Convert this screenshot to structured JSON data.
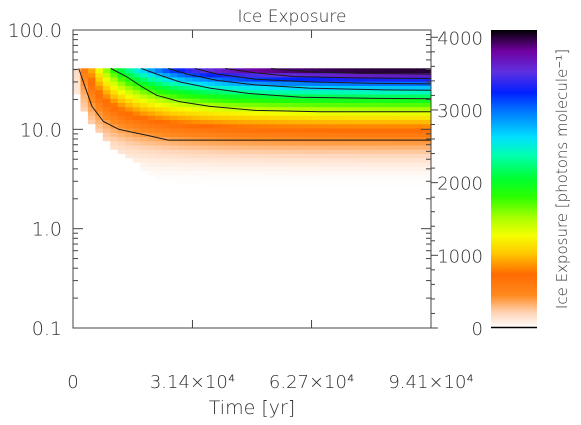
{
  "chart_data": {
    "type": "heatmap",
    "title": "Ice Exposure",
    "xlabel": "Time [yr]",
    "ylabel": "",
    "x_range": [
      0,
      94100
    ],
    "y_range": [
      0.1,
      100.0
    ],
    "y_scale": "log",
    "x_ticks": [
      {
        "value": 0,
        "label": "0"
      },
      {
        "value": 31400,
        "label": "3.14×10⁴"
      },
      {
        "value": 62700,
        "label": "6.27×10⁴"
      },
      {
        "value": 94100,
        "label": "9.41×10⁴"
      }
    ],
    "y_ticks": [
      {
        "value": 0.1,
        "label": "0.1"
      },
      {
        "value": 1.0,
        "label": "1.0"
      },
      {
        "value": 10.0,
        "label": "10.0"
      },
      {
        "value": 100.0,
        "label": "100.0"
      }
    ],
    "colorbar": {
      "label": "Ice Exposure [photons molecule⁻¹]",
      "range": [
        0,
        4100
      ],
      "ticks": [
        {
          "value": 0,
          "label": "0"
        },
        {
          "value": 1000,
          "label": "1000"
        },
        {
          "value": 2000,
          "label": "2000"
        },
        {
          "value": 3000,
          "label": "3000"
        },
        {
          "value": 4000,
          "label": "4000"
        }
      ]
    },
    "region": {
      "y_top": 40,
      "y_edge_min": 2.3
    },
    "contours": [
      {
        "level": 500,
        "points": [
          [
            1500,
            41
          ],
          [
            3000,
            28
          ],
          [
            5000,
            17
          ],
          [
            8000,
            12
          ],
          [
            12000,
            10
          ],
          [
            20000,
            8.6
          ],
          [
            25000,
            7.8
          ],
          [
            94100,
            7.8
          ]
        ]
      },
      {
        "level": 1000,
        "points": [
          [
            10000,
            41
          ],
          [
            14000,
            34
          ],
          [
            18000,
            27
          ],
          [
            22000,
            22
          ],
          [
            28000,
            19
          ],
          [
            36000,
            17
          ],
          [
            48000,
            15.5
          ],
          [
            65000,
            15
          ],
          [
            94100,
            15
          ]
        ]
      },
      {
        "level": 1500,
        "points": [
          [
            18000,
            41
          ],
          [
            22000,
            36
          ],
          [
            28000,
            30
          ],
          [
            36000,
            26
          ],
          [
            46000,
            23
          ],
          [
            60000,
            21
          ],
          [
            80000,
            20.5
          ],
          [
            94100,
            20.3
          ]
        ]
      },
      {
        "level": 2000,
        "points": [
          [
            25000,
            41
          ],
          [
            30000,
            36
          ],
          [
            38000,
            31
          ],
          [
            48000,
            28
          ],
          [
            62000,
            26
          ],
          [
            80000,
            25
          ],
          [
            94100,
            24.7
          ]
        ]
      },
      {
        "level": 2500,
        "points": [
          [
            32000,
            41
          ],
          [
            38000,
            36
          ],
          [
            48000,
            32
          ],
          [
            62000,
            30
          ],
          [
            80000,
            29
          ],
          [
            94100,
            28.7
          ]
        ]
      },
      {
        "level": 3000,
        "points": [
          [
            40000,
            41
          ],
          [
            48000,
            37
          ],
          [
            58000,
            34
          ],
          [
            72000,
            33
          ],
          [
            94100,
            32.5
          ]
        ]
      },
      {
        "level": 3500,
        "points": [
          [
            52000,
            41
          ],
          [
            62000,
            38
          ],
          [
            76000,
            36.5
          ],
          [
            94100,
            36
          ]
        ]
      }
    ]
  }
}
